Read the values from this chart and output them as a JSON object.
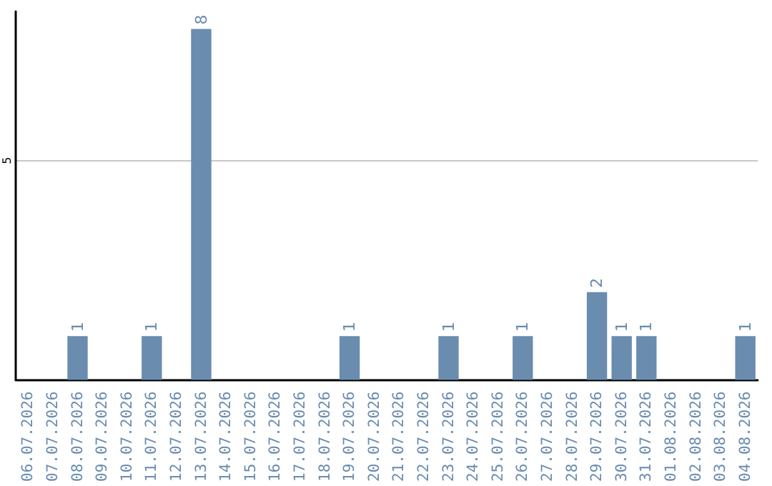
{
  "chart_data": {
    "type": "bar",
    "categories": [
      "06.07.2026",
      "07.07.2026",
      "08.07.2026",
      "09.07.2026",
      "10.07.2026",
      "11.07.2026",
      "12.07.2026",
      "13.07.2026",
      "14.07.2026",
      "15.07.2026",
      "16.07.2026",
      "17.07.2026",
      "18.07.2026",
      "19.07.2026",
      "20.07.2026",
      "21.07.2026",
      "22.07.2026",
      "23.07.2026",
      "24.07.2026",
      "25.07.2026",
      "26.07.2026",
      "27.07.2026",
      "28.07.2026",
      "29.07.2026",
      "30.07.2026",
      "31.07.2026",
      "01.08.2026",
      "02.08.2026",
      "03.08.2026",
      "04.08.2026"
    ],
    "values": [
      0,
      0,
      1,
      0,
      0,
      1,
      0,
      8,
      0,
      0,
      0,
      0,
      0,
      1,
      0,
      0,
      0,
      1,
      0,
      0,
      1,
      0,
      0,
      2,
      1,
      1,
      0,
      0,
      0,
      1
    ],
    "value_labels": [
      null,
      null,
      "1",
      null,
      null,
      "1",
      null,
      "8",
      null,
      null,
      null,
      null,
      null,
      "1",
      null,
      null,
      null,
      "1",
      null,
      null,
      "1",
      null,
      null,
      "2",
      "1",
      "1",
      null,
      null,
      null,
      "1"
    ],
    "color": "#6a8caf",
    "ylim": [
      0,
      8.4
    ],
    "yticks": [
      5
    ],
    "grid": "y"
  }
}
